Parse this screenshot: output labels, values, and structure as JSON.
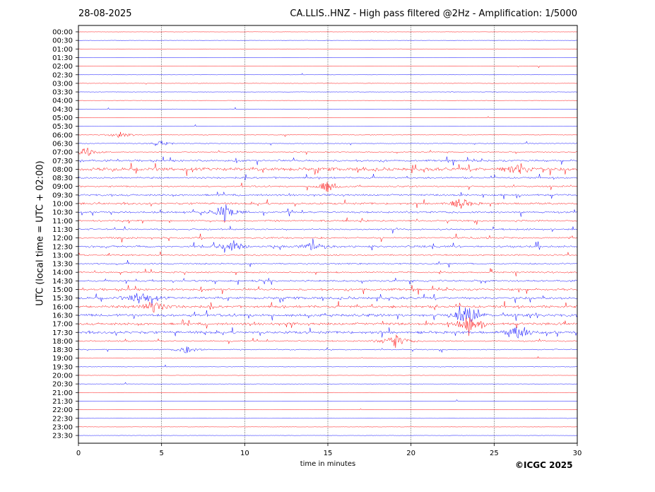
{
  "header": {
    "date": "28-08-2025",
    "title": "CA.LLIS..HNZ - High pass filtered @2Hz - Amplification: 1/5000"
  },
  "footer": {
    "copyright": "©ICGC 2025"
  },
  "chart_data": {
    "type": "line",
    "title": "CA.LLIS..HNZ - High pass filtered @2Hz - Amplification: 1/5000",
    "xlabel": "time in minutes",
    "ylabel": "UTC (local time = UTC + 02:00)",
    "xlim": [
      0,
      30
    ],
    "xticks": [
      "0",
      "5",
      "10",
      "15",
      "20",
      "25",
      "30"
    ],
    "vertical_gridlines_at": [
      5,
      10,
      15,
      20,
      25
    ],
    "row_labels": [
      "00:00",
      "00:30",
      "01:00",
      "01:30",
      "02:00",
      "02:30",
      "03:00",
      "03:30",
      "04:00",
      "04:30",
      "05:00",
      "05:30",
      "06:00",
      "06:30",
      "07:00",
      "07:30",
      "08:00",
      "08:30",
      "09:00",
      "09:30",
      "10:00",
      "10:30",
      "11:00",
      "11:30",
      "12:00",
      "12:30",
      "13:00",
      "13:30",
      "14:00",
      "14:30",
      "15:00",
      "15:30",
      "16:00",
      "16:30",
      "17:00",
      "17:30",
      "18:00",
      "18:30",
      "19:00",
      "19:30",
      "20:00",
      "20:30",
      "21:00",
      "21:30",
      "22:00",
      "22:30",
      "23:00",
      "23:30"
    ],
    "trace_colors": [
      "#ff0000",
      "#0000ff"
    ],
    "activity_level": [
      0.02,
      0.02,
      0.02,
      0.02,
      0.02,
      0.05,
      0.06,
      0.05,
      0.05,
      0.05,
      0.04,
      0.04,
      0.15,
      0.2,
      0.25,
      0.6,
      0.9,
      0.5,
      0.45,
      0.55,
      0.6,
      0.55,
      0.5,
      0.45,
      0.5,
      0.6,
      0.45,
      0.45,
      0.45,
      0.55,
      0.65,
      0.7,
      0.7,
      0.75,
      0.7,
      0.75,
      0.4,
      0.3,
      0.12,
      0.08,
      0.02,
      0.03,
      0.02,
      0.03,
      0.02,
      0.02,
      0.02,
      0.02
    ],
    "events": [
      {
        "row": "06:00",
        "minute": 2.5,
        "amplitude": 0.6
      },
      {
        "row": "06:30",
        "minute": 5.0,
        "amplitude": 0.4
      },
      {
        "row": "07:00",
        "minute": 0.5,
        "amplitude": 0.7
      },
      {
        "row": "08:00",
        "minute": 26.5,
        "amplitude": 1.0
      },
      {
        "row": "09:00",
        "minute": 15.0,
        "amplitude": 0.9
      },
      {
        "row": "10:00",
        "minute": 23.0,
        "amplitude": 0.8
      },
      {
        "row": "10:30",
        "minute": 8.8,
        "amplitude": 1.4
      },
      {
        "row": "12:30",
        "minute": 9.3,
        "amplitude": 0.9
      },
      {
        "row": "12:30",
        "minute": 14.2,
        "amplitude": 0.8
      },
      {
        "row": "15:30",
        "minute": 3.8,
        "amplitude": 1.1
      },
      {
        "row": "16:00",
        "minute": 4.5,
        "amplitude": 1.0
      },
      {
        "row": "16:30",
        "minute": 23.3,
        "amplitude": 1.6
      },
      {
        "row": "17:00",
        "minute": 23.5,
        "amplitude": 1.2
      },
      {
        "row": "17:30",
        "minute": 26.5,
        "amplitude": 1.0
      },
      {
        "row": "18:00",
        "minute": 19.0,
        "amplitude": 1.2
      },
      {
        "row": "18:30",
        "minute": 6.5,
        "amplitude": 0.6
      }
    ]
  }
}
